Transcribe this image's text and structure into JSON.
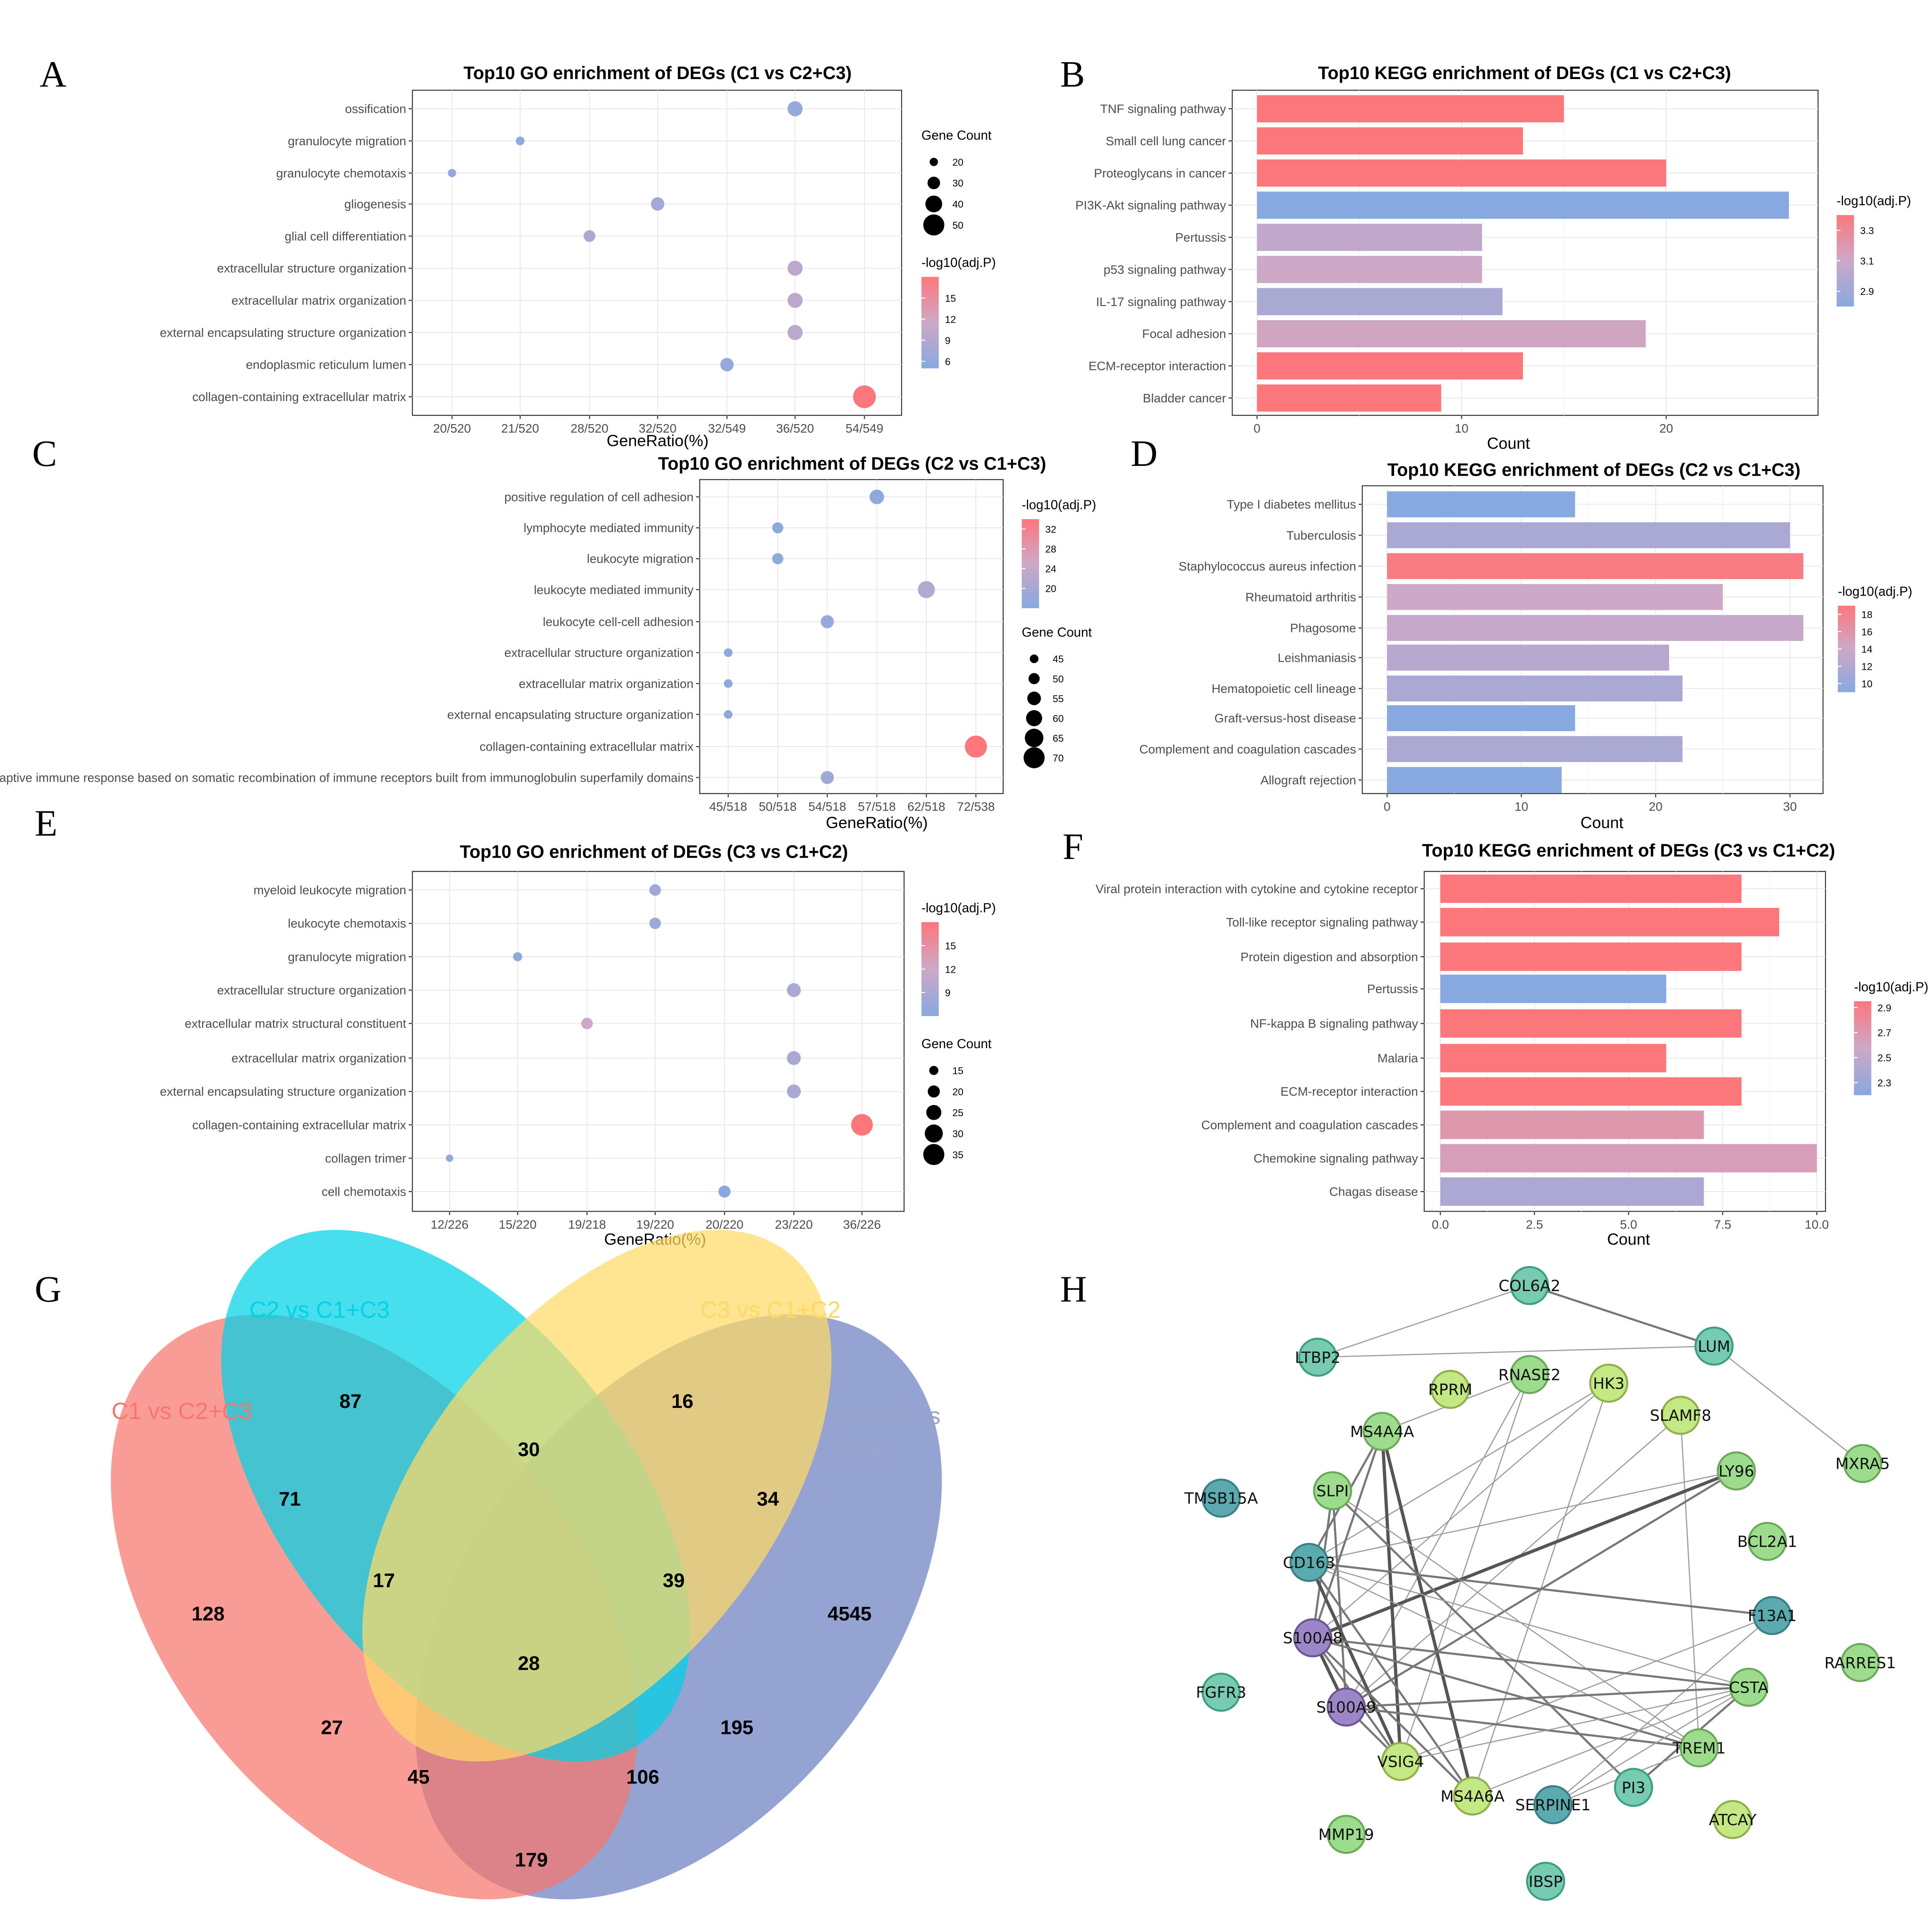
{
  "chart_data": [
    {
      "id": "A",
      "type": "scatter",
      "title": "Top10 GO enrichment of DEGs (C1 vs C2+C3)",
      "xlabel": "GeneRatio(%)",
      "x_ticks": [
        "20/520",
        "21/520",
        "28/520",
        "32/520",
        "32/549",
        "36/520",
        "54/549"
      ],
      "categories": [
        "ossification",
        "granulocyte migration",
        "granulocyte chemotaxis",
        "gliogenesis",
        "glial cell differentiation",
        "extracellular structure organization",
        "extracellular matrix organization",
        "external encapsulating structure organization",
        "endoplasmic reticulum lumen",
        "collagen-containing extracellular matrix"
      ],
      "x": [
        "36/520",
        "21/520",
        "20/520",
        "32/520",
        "28/520",
        "36/520",
        "36/520",
        "36/520",
        "32/549",
        "54/549"
      ],
      "count": [
        36,
        21,
        20,
        32,
        28,
        36,
        36,
        36,
        32,
        54
      ],
      "neglog10_adjP": [
        6.5,
        6,
        6,
        7.5,
        8.5,
        10,
        10,
        10,
        6.5,
        18
      ],
      "size_legend": {
        "title": "Gene Count",
        "values": [
          20,
          30,
          40,
          50
        ]
      },
      "color_legend": {
        "title": "-log10(adj.P)",
        "ticks": [
          15,
          12,
          9,
          6
        ],
        "range": [
          5,
          18
        ]
      }
    },
    {
      "id": "B",
      "type": "bar",
      "title": "Top10 KEGG enrichment of DEGs (C1 vs C2+C3)",
      "xlabel": "Count",
      "xlim": [
        0,
        27
      ],
      "x_ticks": [
        0,
        10,
        20
      ],
      "categories": [
        "TNF signaling pathway",
        "Small cell lung cancer",
        "Proteoglycans in cancer",
        "PI3K-Akt signaling pathway",
        "Pertussis",
        "p53 signaling pathway",
        "IL-17 signaling pathway",
        "Focal adhesion",
        "ECM-receptor interaction",
        "Bladder cancer"
      ],
      "values": [
        15,
        13,
        20,
        26,
        11,
        11,
        12,
        19,
        13,
        9
      ],
      "neglog10_adjP": [
        3.4,
        3.4,
        3.4,
        2.8,
        3.05,
        3.1,
        2.95,
        3.12,
        3.4,
        3.4
      ],
      "color_legend": {
        "title": "-log10(adj.P)",
        "ticks": [
          3.3,
          3.1,
          2.9
        ],
        "range": [
          2.8,
          3.4
        ]
      }
    },
    {
      "id": "C",
      "type": "scatter",
      "title": "Top10 GO enrichment of DEGs (C2 vs C1+C3)",
      "xlabel": "GeneRatio(%)",
      "x_ticks": [
        "45/518",
        "50/518",
        "54/518",
        "57/518",
        "62/518",
        "72/538"
      ],
      "categories": [
        "positive regulation of cell adhesion",
        "lymphocyte mediated immunity",
        "leukocyte migration",
        "leukocyte mediated immunity",
        "leukocyte cell-cell adhesion",
        "extracellular structure organization",
        "extracellular matrix organization",
        "external encapsulating structure organization",
        "collagen-containing extracellular matrix",
        "adaptive immune response based on somatic recombination of immune receptors built from immunoglobulin superfamily domains"
      ],
      "x": [
        "57/518",
        "50/518",
        "50/518",
        "62/518",
        "54/518",
        "45/518",
        "45/518",
        "45/518",
        "72/538",
        "54/518"
      ],
      "count": [
        57,
        50,
        50,
        62,
        54,
        45,
        45,
        45,
        72,
        54
      ],
      "neglog10_adjP": [
        17,
        17,
        17,
        21.5,
        18,
        17,
        17,
        17,
        34,
        19
      ],
      "size_legend": {
        "title": "Gene Count",
        "values": [
          45,
          50,
          55,
          60,
          65,
          70
        ]
      },
      "color_legend": {
        "title": "-log10(adj.P)",
        "ticks": [
          32,
          28,
          24,
          20
        ],
        "range": [
          16,
          34
        ]
      }
    },
    {
      "id": "D",
      "type": "bar",
      "title": "Top10 KEGG enrichment of DEGs (C2 vs C1+C3)",
      "xlabel": "Count",
      "xlim": [
        0,
        32
      ],
      "x_ticks": [
        0,
        10,
        20,
        30
      ],
      "categories": [
        "Type I diabetes mellitus",
        "Tuberculosis",
        "Staphylococcus aureus infection",
        "Rheumatoid arthritis",
        "Phagosome",
        "Leishmaniasis",
        "Hematopoietic cell lineage",
        "Graft-versus-host disease",
        "Complement and coagulation cascades",
        "Allograft rejection"
      ],
      "values": [
        14,
        30,
        31,
        25,
        31,
        21,
        22,
        14,
        22,
        13
      ],
      "neglog10_adjP": [
        9,
        11.5,
        18.5,
        14,
        13.5,
        12.5,
        11.5,
        9,
        11.5,
        9
      ],
      "color_legend": {
        "title": "-log10(adj.P)",
        "ticks": [
          18,
          16,
          14,
          12,
          10
        ],
        "range": [
          9,
          19
        ]
      }
    },
    {
      "id": "E",
      "type": "scatter",
      "title": "Top10 GO enrichment of DEGs (C3 vs C1+C2)",
      "xlabel": "GeneRatio(%)",
      "x_ticks": [
        "12/226",
        "15/220",
        "19/218",
        "19/220",
        "20/220",
        "23/220",
        "36/226"
      ],
      "categories": [
        "myeloid leukocyte migration",
        "leukocyte chemotaxis",
        "granulocyte migration",
        "extracellular structure organization",
        "extracellular matrix structural constituent",
        "extracellular matrix organization",
        "external encapsulating structure organization",
        "collagen-containing extracellular matrix",
        "collagen trimer",
        "cell chemotaxis"
      ],
      "x": [
        "19/220",
        "19/220",
        "15/220",
        "23/220",
        "19/218",
        "23/220",
        "23/220",
        "36/226",
        "12/226",
        "20/220"
      ],
      "count": [
        19,
        19,
        15,
        23,
        19,
        23,
        23,
        36,
        12,
        20
      ],
      "neglog10_adjP": [
        8,
        8,
        7,
        9,
        12,
        9,
        9,
        18,
        7,
        6
      ],
      "size_legend": {
        "title": "Gene Count",
        "values": [
          15,
          20,
          25,
          30,
          35
        ]
      },
      "color_legend": {
        "title": "-log10(adj.P)",
        "ticks": [
          15,
          12,
          9
        ],
        "range": [
          6,
          18
        ]
      }
    },
    {
      "id": "F",
      "type": "bar",
      "title": "Top10 KEGG enrichment of DEGs (C3 vs C1+C2)",
      "xlabel": "Count",
      "xlim": [
        0,
        10
      ],
      "x_ticks": [
        0,
        2.5,
        5,
        7.5,
        10
      ],
      "x_tick_labels": [
        "0.0",
        "2.5",
        "5.0",
        "7.5",
        "10.0"
      ],
      "categories": [
        "Viral protein interaction with cytokine and cytokine receptor",
        "Toll-like receptor signaling pathway",
        "Protein digestion and absorption",
        "Pertussis",
        "NF-kappa B signaling pathway",
        "Malaria",
        "ECM-receptor interaction",
        "Complement and coagulation cascades",
        "Chemokine signaling pathway",
        "Chagas disease"
      ],
      "values": [
        8,
        9,
        8,
        6,
        8,
        6,
        8,
        7,
        10,
        7
      ],
      "neglog10_adjP": [
        2.95,
        2.95,
        2.95,
        2.2,
        2.95,
        2.95,
        2.95,
        2.7,
        2.65,
        2.4
      ],
      "color_legend": {
        "title": "-log10(adj.P)",
        "ticks": [
          2.9,
          2.7,
          2.5,
          2.3
        ],
        "range": [
          2.2,
          2.95
        ]
      }
    },
    {
      "id": "G",
      "type": "venn",
      "sets": [
        "C1 vs C2+C3",
        "C2 vs C1+C3",
        "C3 vs C1+C2",
        "Normal vs GBM"
      ],
      "set_colors": [
        "#f8766d",
        "#00d2e6",
        "#ffd966",
        "#6b7fbf"
      ],
      "regions": [
        {
          "sets": "C1",
          "value": 128
        },
        {
          "sets": "C2",
          "value": 87
        },
        {
          "sets": "C3",
          "value": 16
        },
        {
          "sets": "N",
          "value": 4545
        },
        {
          "sets": "C1&C2",
          "value": 71
        },
        {
          "sets": "C2&C3",
          "value": 30
        },
        {
          "sets": "C3&N",
          "value": 34
        },
        {
          "sets": "C1&C2&C3",
          "value": 17
        },
        {
          "sets": "C2&C3&N",
          "value": 39
        },
        {
          "sets": "C1&C2&C3&N",
          "value": 28
        },
        {
          "sets": "C1&C3",
          "value": 27
        },
        {
          "sets": "C2&N",
          "value": 195
        },
        {
          "sets": "C1&C3&N",
          "value": 45
        },
        {
          "sets": "C1&C2&N",
          "value": 106
        },
        {
          "sets": "C1&N",
          "value": 179
        }
      ]
    },
    {
      "id": "H",
      "type": "network",
      "nodes": [
        {
          "id": "COL6A2",
          "group": "teal"
        },
        {
          "id": "LUM",
          "group": "teal"
        },
        {
          "id": "LTBP2",
          "group": "teal"
        },
        {
          "id": "RPRM",
          "group": "lime"
        },
        {
          "id": "RNASE2",
          "group": "green"
        },
        {
          "id": "HK3",
          "group": "lime"
        },
        {
          "id": "SLAMF8",
          "group": "lime"
        },
        {
          "id": "MS4A4A",
          "group": "green"
        },
        {
          "id": "MXRA5",
          "group": "green"
        },
        {
          "id": "TMSB15A",
          "group": "blue"
        },
        {
          "id": "SLPI",
          "group": "green"
        },
        {
          "id": "LY96",
          "group": "green"
        },
        {
          "id": "BCL2A1",
          "group": "green"
        },
        {
          "id": "CD163",
          "group": "blue"
        },
        {
          "id": "F13A1",
          "group": "blue"
        },
        {
          "id": "S100A8",
          "group": "purple"
        },
        {
          "id": "RARRES1",
          "group": "green"
        },
        {
          "id": "FGFR3",
          "group": "teal"
        },
        {
          "id": "CSTA",
          "group": "green"
        },
        {
          "id": "S100A9",
          "group": "purple"
        },
        {
          "id": "TREM1",
          "group": "green"
        },
        {
          "id": "VSIG4",
          "group": "lime"
        },
        {
          "id": "PI3",
          "group": "teal"
        },
        {
          "id": "MS4A6A",
          "group": "lime"
        },
        {
          "id": "SERPINE1",
          "group": "blue"
        },
        {
          "id": "ATCAY",
          "group": "lime"
        },
        {
          "id": "MMP19",
          "group": "green"
        },
        {
          "id": "IBSP",
          "group": "teal"
        }
      ],
      "edges": [
        [
          "COL6A2",
          "LUM",
          2
        ],
        [
          "COL6A2",
          "LTBP2",
          1
        ],
        [
          "LTBP2",
          "LUM",
          1
        ],
        [
          "LUM",
          "MXRA5",
          1
        ],
        [
          "RNASE2",
          "MS4A4A",
          1
        ],
        [
          "RNASE2",
          "S100A9",
          1
        ],
        [
          "RNASE2",
          "VSIG4",
          1
        ],
        [
          "HK3",
          "S100A8",
          1
        ],
        [
          "HK3",
          "CD163",
          1
        ],
        [
          "HK3",
          "MS4A6A",
          1
        ],
        [
          "SLAMF8",
          "TREM1",
          1
        ],
        [
          "SLAMF8",
          "S100A9",
          1
        ],
        [
          "LY96",
          "S100A8",
          3
        ],
        [
          "LY96",
          "S100A9",
          2
        ],
        [
          "LY96",
          "CD163",
          1
        ],
        [
          "MS4A4A",
          "VSIG4",
          3
        ],
        [
          "MS4A4A",
          "MS4A6A",
          3
        ],
        [
          "MS4A4A",
          "S100A8",
          2
        ],
        [
          "MS4A4A",
          "CD163",
          2
        ],
        [
          "SLPI",
          "S100A9",
          2
        ],
        [
          "SLPI",
          "S100A8",
          2
        ],
        [
          "SLPI",
          "PI3",
          2
        ],
        [
          "SLPI",
          "TREM1",
          1
        ],
        [
          "CD163",
          "VSIG4",
          3
        ],
        [
          "CD163",
          "MS4A6A",
          2
        ],
        [
          "CD163",
          "F13A1",
          2
        ],
        [
          "CD163",
          "CSTA",
          1
        ],
        [
          "CD163",
          "TREM1",
          1
        ],
        [
          "F13A1",
          "VSIG4",
          1
        ],
        [
          "F13A1",
          "SERPINE1",
          1
        ],
        [
          "S100A8",
          "S100A9",
          3
        ],
        [
          "S100A8",
          "CSTA",
          2
        ],
        [
          "S100A8",
          "TREM1",
          2
        ],
        [
          "S100A8",
          "VSIG4",
          2
        ],
        [
          "S100A8",
          "MS4A6A",
          2
        ],
        [
          "S100A9",
          "CSTA",
          2
        ],
        [
          "S100A9",
          "TREM1",
          2
        ],
        [
          "S100A9",
          "VSIG4",
          2
        ],
        [
          "CSTA",
          "PI3",
          2
        ],
        [
          "CSTA",
          "MS4A6A",
          1
        ],
        [
          "CSTA",
          "VSIG4",
          1
        ],
        [
          "CSTA",
          "SERPINE1",
          1
        ],
        [
          "TREM1",
          "SERPINE1",
          1
        ]
      ]
    }
  ],
  "panels": [
    "A",
    "B",
    "C",
    "D",
    "E",
    "F",
    "G",
    "H"
  ],
  "colors": {
    "low": "#87a9e0",
    "high": "#fc777c",
    "teal": "#77cbb0",
    "green": "#9ddc8c",
    "lime": "#c4e884",
    "blue": "#5aaab0",
    "purple": "#9d86c7"
  }
}
